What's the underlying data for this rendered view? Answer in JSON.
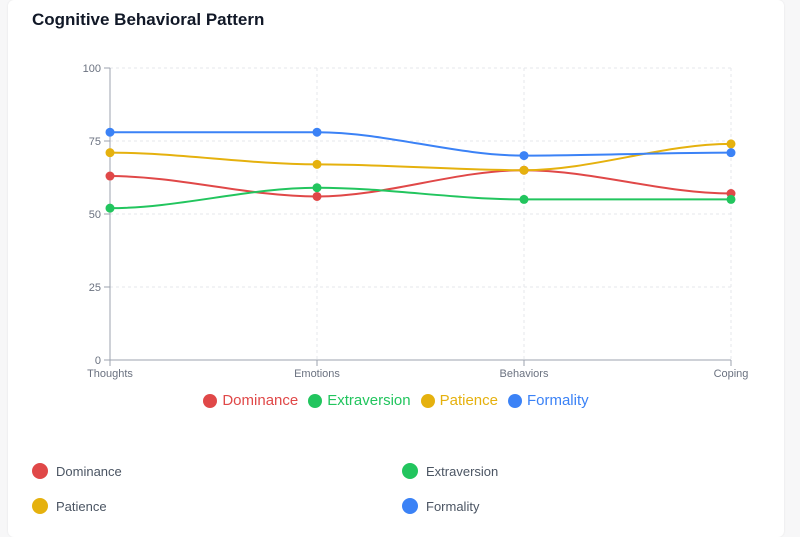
{
  "title": "Cognitive Behavioral Pattern",
  "chart_data": {
    "type": "line",
    "title": "Cognitive Behavioral Pattern",
    "categories": [
      "Thoughts",
      "Emotions",
      "Behaviors",
      "Coping"
    ],
    "ylim": [
      0,
      100
    ],
    "yticks": [
      0,
      25,
      50,
      75,
      100
    ],
    "grid": true,
    "legend": "bottom",
    "series": [
      {
        "name": "Dominance",
        "color": "#e04848",
        "values": [
          63,
          56,
          65,
          57
        ]
      },
      {
        "name": "Extraversion",
        "color": "#22c55e",
        "values": [
          52,
          59,
          55,
          55
        ]
      },
      {
        "name": "Patience",
        "color": "#e5b10e",
        "values": [
          71,
          67,
          65,
          74
        ]
      },
      {
        "name": "Formality",
        "color": "#3b82f6",
        "values": [
          78,
          78,
          70,
          71
        ]
      }
    ]
  }
}
